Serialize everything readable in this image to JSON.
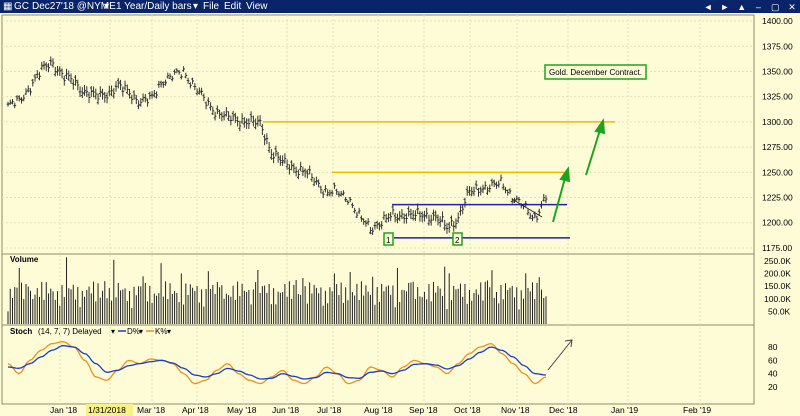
{
  "titlebar": {
    "symbol": "GC",
    "instrument": "Dec27'18 @NYME",
    "timeframe": "1 Year/Daily bars",
    "menus": [
      "File",
      "Edit",
      "View"
    ],
    "buttons": [
      "◄",
      "►",
      "▲",
      "–",
      "▢",
      "✕"
    ]
  },
  "colors": {
    "background": "#fdfcd7",
    "price_bars": "#333333",
    "resistance": "#f2b705",
    "support": "#1f1fa8",
    "annotation": "#1ea31e",
    "d_line": "#1a3fc4",
    "k_line": "#f0901a"
  },
  "annotations": {
    "title_box": "Gold. December Contract.",
    "box_1": "1",
    "box_2": "2"
  },
  "x_axis": {
    "labels": [
      "Jan '18",
      "1/31/2018",
      "Mar '18",
      "Apr '18",
      "May '18",
      "Jun '18",
      "Jul '18",
      "Aug '18",
      "Sep '18",
      "Oct '18",
      "Nov '18",
      "Dec '18",
      "Jan '19",
      "Feb '19"
    ],
    "highlighted": "1/31/2018"
  },
  "price_panel": {
    "y_ticks": [
      "1400.00",
      "1375.00",
      "1350.00",
      "1325.00",
      "1300.00",
      "1275.00",
      "1250.00",
      "1225.00",
      "1200.00",
      "1175.00"
    ]
  },
  "volume_panel": {
    "label": "Volume",
    "y_ticks": [
      "250.0K",
      "200.0K",
      "150.0K",
      "100.0K",
      "50.0K"
    ]
  },
  "stoch_panel": {
    "label": "Stoch",
    "params": "(14, 7, 7) Delayed",
    "legend_d": "D%",
    "legend_k": "K%",
    "y_ticks": [
      "80",
      "60",
      "40",
      "20"
    ]
  },
  "chart_data": {
    "type": "line",
    "ylim": [
      1170,
      1405
    ],
    "resistance_levels": [
      1300,
      1250
    ],
    "support_levels": [
      1218,
      1185
    ],
    "price_close_weekly": [
      1316,
      1320,
      1335,
      1350,
      1360,
      1345,
      1340,
      1330,
      1325,
      1328,
      1335,
      1330,
      1320,
      1322,
      1340,
      1345,
      1350,
      1335,
      1320,
      1310,
      1304,
      1302,
      1300,
      1298,
      1270,
      1260,
      1255,
      1250,
      1242,
      1230,
      1230,
      1225,
      1205,
      1195,
      1200,
      1207,
      1208,
      1207,
      1208,
      1205,
      1195,
      1205,
      1230,
      1235,
      1235,
      1240,
      1225,
      1215,
      1205,
      1225
    ],
    "stoch_k": [
      55,
      40,
      60,
      75,
      85,
      88,
      80,
      60,
      35,
      30,
      45,
      60,
      55,
      62,
      60,
      55,
      40,
      25,
      30,
      45,
      55,
      40,
      30,
      25,
      35,
      45,
      30,
      25,
      35,
      50,
      40,
      25,
      30,
      50,
      45,
      35,
      50,
      60,
      55,
      50,
      40,
      55,
      70,
      80,
      85,
      70,
      55,
      40,
      25,
      35
    ],
    "stoch_d": [
      50,
      48,
      55,
      65,
      75,
      82,
      80,
      70,
      55,
      42,
      45,
      52,
      55,
      58,
      60,
      56,
      48,
      38,
      35,
      40,
      48,
      44,
      38,
      32,
      33,
      40,
      36,
      32,
      34,
      42,
      40,
      34,
      33,
      42,
      44,
      40,
      45,
      54,
      55,
      53,
      47,
      52,
      62,
      72,
      80,
      75,
      65,
      52,
      40,
      38
    ]
  }
}
